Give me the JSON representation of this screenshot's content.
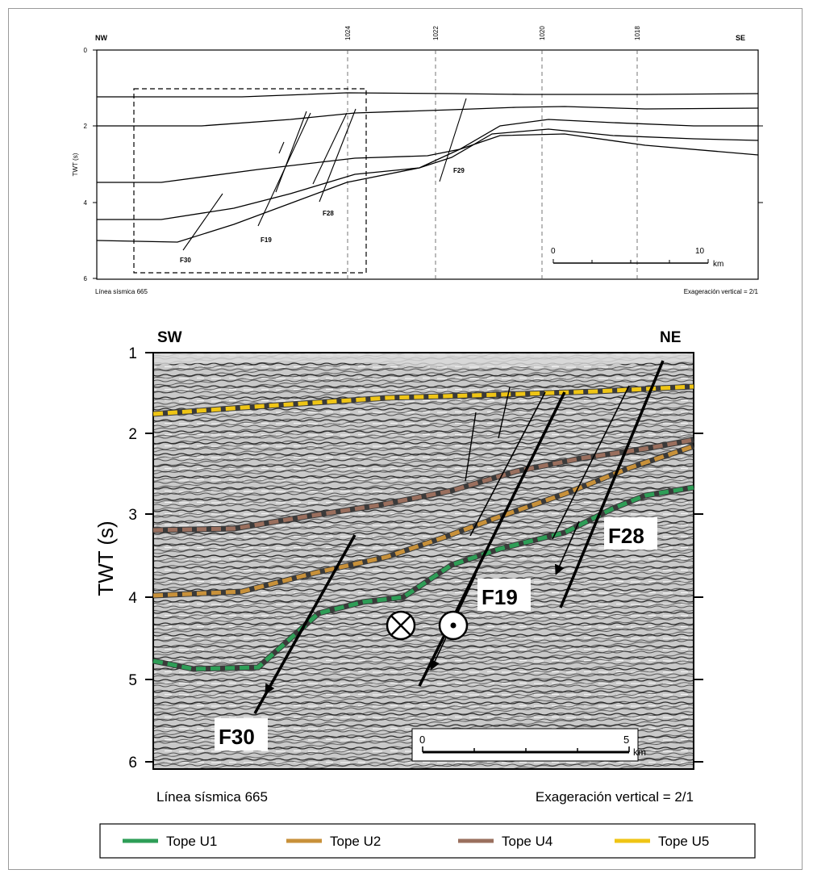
{
  "top_section": {
    "left_orientation": "NW",
    "right_orientation": "SE",
    "y_axis_label": "TWT (s)",
    "y_ticks": [
      "0",
      "2",
      "4",
      "6"
    ],
    "cdp_labels": [
      "1024",
      "1022",
      "1020",
      "1018"
    ],
    "fault_labels": [
      "F30",
      "F19",
      "F28",
      "F29"
    ],
    "scale_bar": {
      "start": "0",
      "end": "10",
      "unit": "km"
    },
    "footer_left": "Línea sísmica 665",
    "footer_right": "Exageración vertical = 2/1"
  },
  "bottom_section": {
    "left_orientation": "SW",
    "right_orientation": "NE",
    "y_axis_label": "TWT (s)",
    "y_ticks": [
      "1",
      "2",
      "3",
      "4",
      "5",
      "6"
    ],
    "fault_labels": [
      "F30",
      "F19",
      "F28"
    ],
    "scale_bar": {
      "start": "0",
      "end": "5",
      "unit": "km"
    },
    "footer_left": "Línea sísmica 665",
    "footer_right": "Exageración vertical = 2/1"
  },
  "legend": [
    {
      "label": "Tope U1",
      "color": "#2e9e57"
    },
    {
      "label": "Tope U2",
      "color": "#c8913a"
    },
    {
      "label": "Tope U4",
      "color": "#9a6f5e"
    },
    {
      "label": "Tope U5",
      "color": "#efc515"
    }
  ]
}
